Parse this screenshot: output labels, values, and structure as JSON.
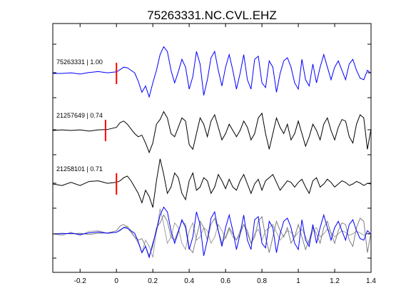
{
  "chart_data": {
    "type": "line",
    "title": "75263331.NC.CVL.EHZ",
    "xlabel": "",
    "ylabel": "",
    "xlim": [
      -0.35,
      1.4
    ],
    "xticks": [
      -0.2,
      0,
      0.2,
      0.4,
      0.6,
      0.8,
      1,
      1.2,
      1.4
    ],
    "xtick_labels": [
      "-0.2",
      "0",
      "0.2",
      "0.4",
      "0.6",
      "0.8",
      "1",
      "1.2",
      "1.4"
    ],
    "grid": false,
    "pick_color": "#ff0000",
    "series": [
      {
        "label": "75263331 | 1.00",
        "color": "#0000ff",
        "pick_time": 0.0,
        "x": [
          -0.35,
          -0.3,
          -0.25,
          -0.2,
          -0.15,
          -0.1,
          -0.05,
          0.0,
          0.02,
          0.04,
          0.06,
          0.08,
          0.1,
          0.12,
          0.14,
          0.16,
          0.18,
          0.2,
          0.22,
          0.24,
          0.26,
          0.28,
          0.3,
          0.32,
          0.34,
          0.36,
          0.38,
          0.4,
          0.42,
          0.44,
          0.46,
          0.48,
          0.5,
          0.52,
          0.54,
          0.56,
          0.58,
          0.6,
          0.62,
          0.64,
          0.66,
          0.68,
          0.7,
          0.72,
          0.74,
          0.76,
          0.78,
          0.8,
          0.82,
          0.84,
          0.86,
          0.88,
          0.9,
          0.92,
          0.94,
          0.96,
          0.98,
          1.0,
          1.02,
          1.04,
          1.06,
          1.08,
          1.1,
          1.12,
          1.14,
          1.16,
          1.18,
          1.2,
          1.22,
          1.24,
          1.26,
          1.28,
          1.3,
          1.32,
          1.34,
          1.36,
          1.38,
          1.4
        ],
        "y": [
          0.0,
          0.0,
          0.02,
          -0.02,
          0.03,
          0.06,
          0.02,
          0.05,
          0.12,
          0.2,
          0.18,
          0.1,
          0.02,
          -0.25,
          -0.6,
          -0.4,
          -0.75,
          -0.3,
          0.1,
          0.6,
          0.85,
          0.7,
          0.1,
          -0.3,
          0.05,
          0.45,
          0.2,
          -0.5,
          -0.1,
          0.7,
          0.3,
          -0.7,
          -0.2,
          0.5,
          0.7,
          0.1,
          -0.4,
          0.2,
          0.6,
          0.1,
          -0.5,
          0.0,
          0.6,
          -0.2,
          -0.5,
          0.45,
          0.55,
          -0.3,
          -0.45,
          0.4,
          0.2,
          -0.6,
          0.0,
          0.4,
          0.5,
          0.2,
          -0.3,
          -0.5,
          0.45,
          -0.2,
          -0.4,
          0.3,
          -0.3,
          0.2,
          0.6,
          0.2,
          -0.2,
          0.2,
          0.4,
          0.1,
          -0.2,
          0.3,
          0.45,
          0.1,
          -0.15,
          -0.2,
          0.1,
          0.0
        ]
      },
      {
        "label": "21257649 | 0.74",
        "color": "#000000",
        "pick_time": -0.06,
        "x": [
          -0.35,
          -0.3,
          -0.25,
          -0.2,
          -0.15,
          -0.1,
          -0.05,
          0.0,
          0.02,
          0.04,
          0.06,
          0.08,
          0.1,
          0.12,
          0.14,
          0.16,
          0.18,
          0.2,
          0.22,
          0.24,
          0.26,
          0.28,
          0.3,
          0.32,
          0.34,
          0.36,
          0.38,
          0.4,
          0.42,
          0.44,
          0.46,
          0.48,
          0.5,
          0.52,
          0.54,
          0.56,
          0.58,
          0.6,
          0.62,
          0.64,
          0.66,
          0.68,
          0.7,
          0.72,
          0.74,
          0.76,
          0.78,
          0.8,
          0.82,
          0.84,
          0.86,
          0.88,
          0.9,
          0.92,
          0.94,
          0.96,
          0.98,
          1.0,
          1.02,
          1.04,
          1.06,
          1.08,
          1.1,
          1.12,
          1.14,
          1.16,
          1.18,
          1.2,
          1.22,
          1.24,
          1.26,
          1.28,
          1.3,
          1.32,
          1.34,
          1.36,
          1.38,
          1.4
        ],
        "y": [
          0.0,
          0.02,
          0.0,
          0.02,
          -0.02,
          0.02,
          0.03,
          0.1,
          0.25,
          0.3,
          0.2,
          0.05,
          -0.1,
          -0.2,
          -0.15,
          -0.4,
          -0.7,
          -0.4,
          0.2,
          0.35,
          0.6,
          0.4,
          -0.1,
          -0.2,
          0.1,
          0.4,
          0.3,
          -0.45,
          -0.6,
          -0.1,
          0.4,
          0.2,
          -0.2,
          0.3,
          0.5,
          0.1,
          -0.3,
          -0.1,
          0.2,
          0.0,
          -0.2,
          0.0,
          0.3,
          0.1,
          -0.3,
          -0.1,
          0.4,
          0.55,
          -0.1,
          -0.6,
          -0.1,
          0.4,
          0.1,
          -0.1,
          0.2,
          -0.3,
          -0.1,
          0.3,
          -0.1,
          -0.5,
          -0.2,
          0.2,
          0.0,
          -0.3,
          0.2,
          0.4,
          0.0,
          -0.3,
          0.1,
          0.35,
          0.3,
          -0.2,
          -0.4,
          0.2,
          0.5,
          0.4,
          -0.6,
          0.05
        ]
      },
      {
        "label": "21258101 | 0.71",
        "color": "#000000",
        "pick_time": 0.0,
        "x": [
          -0.35,
          -0.3,
          -0.25,
          -0.2,
          -0.15,
          -0.1,
          -0.05,
          0.0,
          0.02,
          0.04,
          0.06,
          0.08,
          0.1,
          0.12,
          0.14,
          0.16,
          0.18,
          0.2,
          0.22,
          0.24,
          0.26,
          0.28,
          0.3,
          0.32,
          0.34,
          0.36,
          0.38,
          0.4,
          0.42,
          0.44,
          0.46,
          0.48,
          0.5,
          0.52,
          0.54,
          0.56,
          0.58,
          0.6,
          0.62,
          0.64,
          0.66,
          0.68,
          0.7,
          0.72,
          0.74,
          0.76,
          0.78,
          0.8,
          0.82,
          0.84,
          0.86,
          0.88,
          0.9,
          0.92,
          0.94,
          0.96,
          0.98,
          1.0,
          1.02,
          1.04,
          1.06,
          1.08,
          1.1,
          1.12,
          1.14,
          1.16,
          1.18,
          1.2,
          1.22,
          1.24,
          1.26,
          1.28,
          1.3,
          1.32,
          1.34,
          1.36,
          1.38,
          1.4
        ],
        "y": [
          0.0,
          -0.05,
          0.05,
          -0.05,
          0.08,
          0.1,
          0.02,
          0.05,
          0.1,
          0.2,
          0.25,
          0.1,
          -0.1,
          -0.3,
          -0.6,
          -0.2,
          -0.4,
          -0.75,
          0.1,
          0.8,
          0.3,
          -0.3,
          -0.1,
          0.35,
          0.2,
          -0.3,
          -0.5,
          0.1,
          0.35,
          -0.2,
          -0.1,
          0.2,
          0.1,
          -0.3,
          -0.1,
          0.3,
          0.1,
          -0.15,
          0.15,
          -0.1,
          -0.2,
          0.1,
          0.3,
          0.0,
          -0.3,
          0.0,
          0.15,
          -0.2,
          0.1,
          0.2,
          0.3,
          0.05,
          -0.2,
          -0.05,
          0.1,
          0.05,
          -0.1,
          0.05,
          0.15,
          -0.1,
          -0.3,
          0.1,
          0.2,
          -0.1,
          0.0,
          0.15,
          0.05,
          -0.1,
          0.0,
          0.1,
          0.05,
          -0.05,
          0.0,
          0.08,
          0.03,
          -0.05,
          0.02,
          0.0
        ]
      }
    ]
  }
}
